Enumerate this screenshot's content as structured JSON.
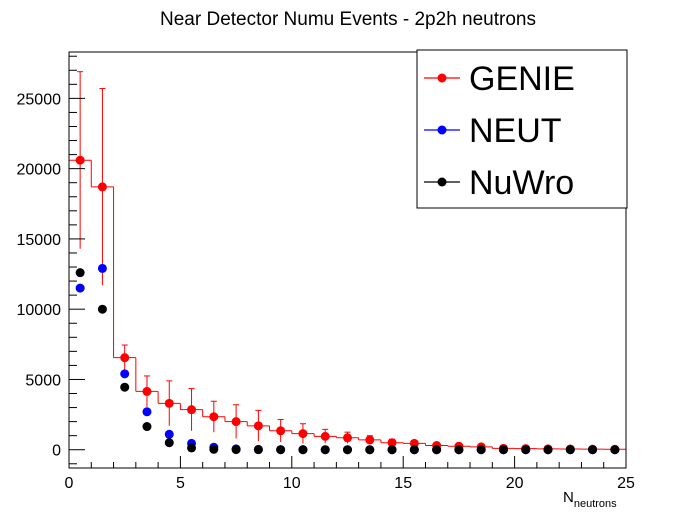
{
  "chart_data": {
    "type": "scatter",
    "title": "Near Detector Numu Events - 2p2h neutrons",
    "xlabel_main": "N",
    "xlabel_sub": "neutrons",
    "ylabel": "",
    "xlim": [
      0,
      25
    ],
    "ylim": [
      -1300,
      28300
    ],
    "xticks": [
      0,
      5,
      10,
      15,
      20,
      25
    ],
    "yticks": [
      0,
      5000,
      10000,
      15000,
      20000,
      25000
    ],
    "grid": false,
    "legend_position": "top-right",
    "bin_width": 1,
    "x": [
      0.5,
      1.5,
      2.5,
      3.5,
      4.5,
      5.5,
      6.5,
      7.5,
      8.5,
      9.5,
      10.5,
      11.5,
      12.5,
      13.5,
      14.5,
      15.5,
      16.5,
      17.5,
      18.5,
      19.5,
      20.5,
      21.5,
      22.5,
      23.5,
      24.5
    ],
    "series": [
      {
        "name": "GENIE",
        "color": "#ff0000",
        "style": "histogram-with-errors",
        "values": [
          20600,
          18700,
          6550,
          4150,
          3300,
          2850,
          2350,
          2000,
          1700,
          1350,
          1150,
          950,
          850,
          700,
          500,
          450,
          300,
          250,
          200,
          100,
          80,
          60,
          50,
          40,
          30
        ],
        "errors": [
          6300,
          7000,
          900,
          1100,
          1600,
          1500,
          1100,
          1200,
          1100,
          800,
          700,
          500,
          400,
          300,
          250,
          200,
          150,
          120,
          100,
          70,
          50,
          40,
          30,
          30,
          20
        ]
      },
      {
        "name": "NEUT",
        "color": "#0000ff",
        "style": "markers",
        "values": [
          11500,
          12900,
          5400,
          2700,
          1100,
          450,
          180,
          60,
          25,
          10,
          5,
          3,
          2,
          1,
          0,
          0,
          0,
          0,
          0,
          0,
          0,
          0,
          0,
          0,
          0
        ]
      },
      {
        "name": "NuWro",
        "color": "#000000",
        "style": "markers",
        "values": [
          12600,
          10000,
          4450,
          1650,
          500,
          130,
          30,
          10,
          4,
          2,
          1,
          0,
          0,
          0,
          0,
          0,
          0,
          0,
          0,
          0,
          0,
          0,
          0,
          0,
          0
        ]
      }
    ]
  }
}
